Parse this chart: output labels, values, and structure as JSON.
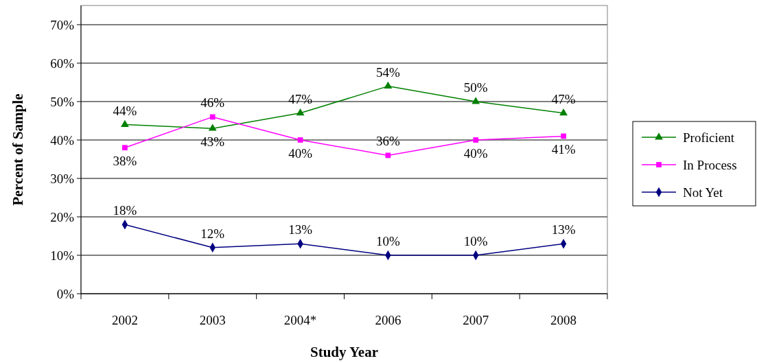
{
  "chart_data": {
    "type": "line",
    "xlabel": "Study Year",
    "ylabel": "Percent of Sample",
    "categories": [
      "2002",
      "2003",
      "2004*",
      "2006",
      "2007",
      "2008"
    ],
    "series": [
      {
        "name": "Proficient",
        "color": "#008000",
        "marker": "triangle",
        "values": [
          44,
          43,
          47,
          54,
          50,
          47
        ],
        "value_labels": [
          "44%",
          "43%",
          "47%",
          "54%",
          "50%",
          "47%"
        ]
      },
      {
        "name": "In Process",
        "color": "#ff00ff",
        "marker": "square",
        "values": [
          38,
          46,
          40,
          36,
          40,
          41
        ],
        "value_labels": [
          "38%",
          "46%",
          "40%",
          "36%",
          "40%",
          "41%"
        ]
      },
      {
        "name": "Not Yet",
        "color": "#000080",
        "marker": "diamond",
        "values": [
          18,
          12,
          13,
          10,
          10,
          13
        ],
        "value_labels": [
          "18%",
          "12%",
          "13%",
          "10%",
          "10%",
          "13%"
        ]
      }
    ],
    "ylim": [
      0,
      75
    ],
    "yticks": [
      {
        "value": 0,
        "label": "0%"
      },
      {
        "value": 10,
        "label": "10%"
      },
      {
        "value": 20,
        "label": "20%"
      },
      {
        "value": 30,
        "label": "30%"
      },
      {
        "value": 40,
        "label": "40%"
      },
      {
        "value": 50,
        "label": "50%"
      },
      {
        "value": 60,
        "label": "60%"
      },
      {
        "value": 70,
        "label": "70%"
      }
    ],
    "grid": "y",
    "legend": "right"
  }
}
